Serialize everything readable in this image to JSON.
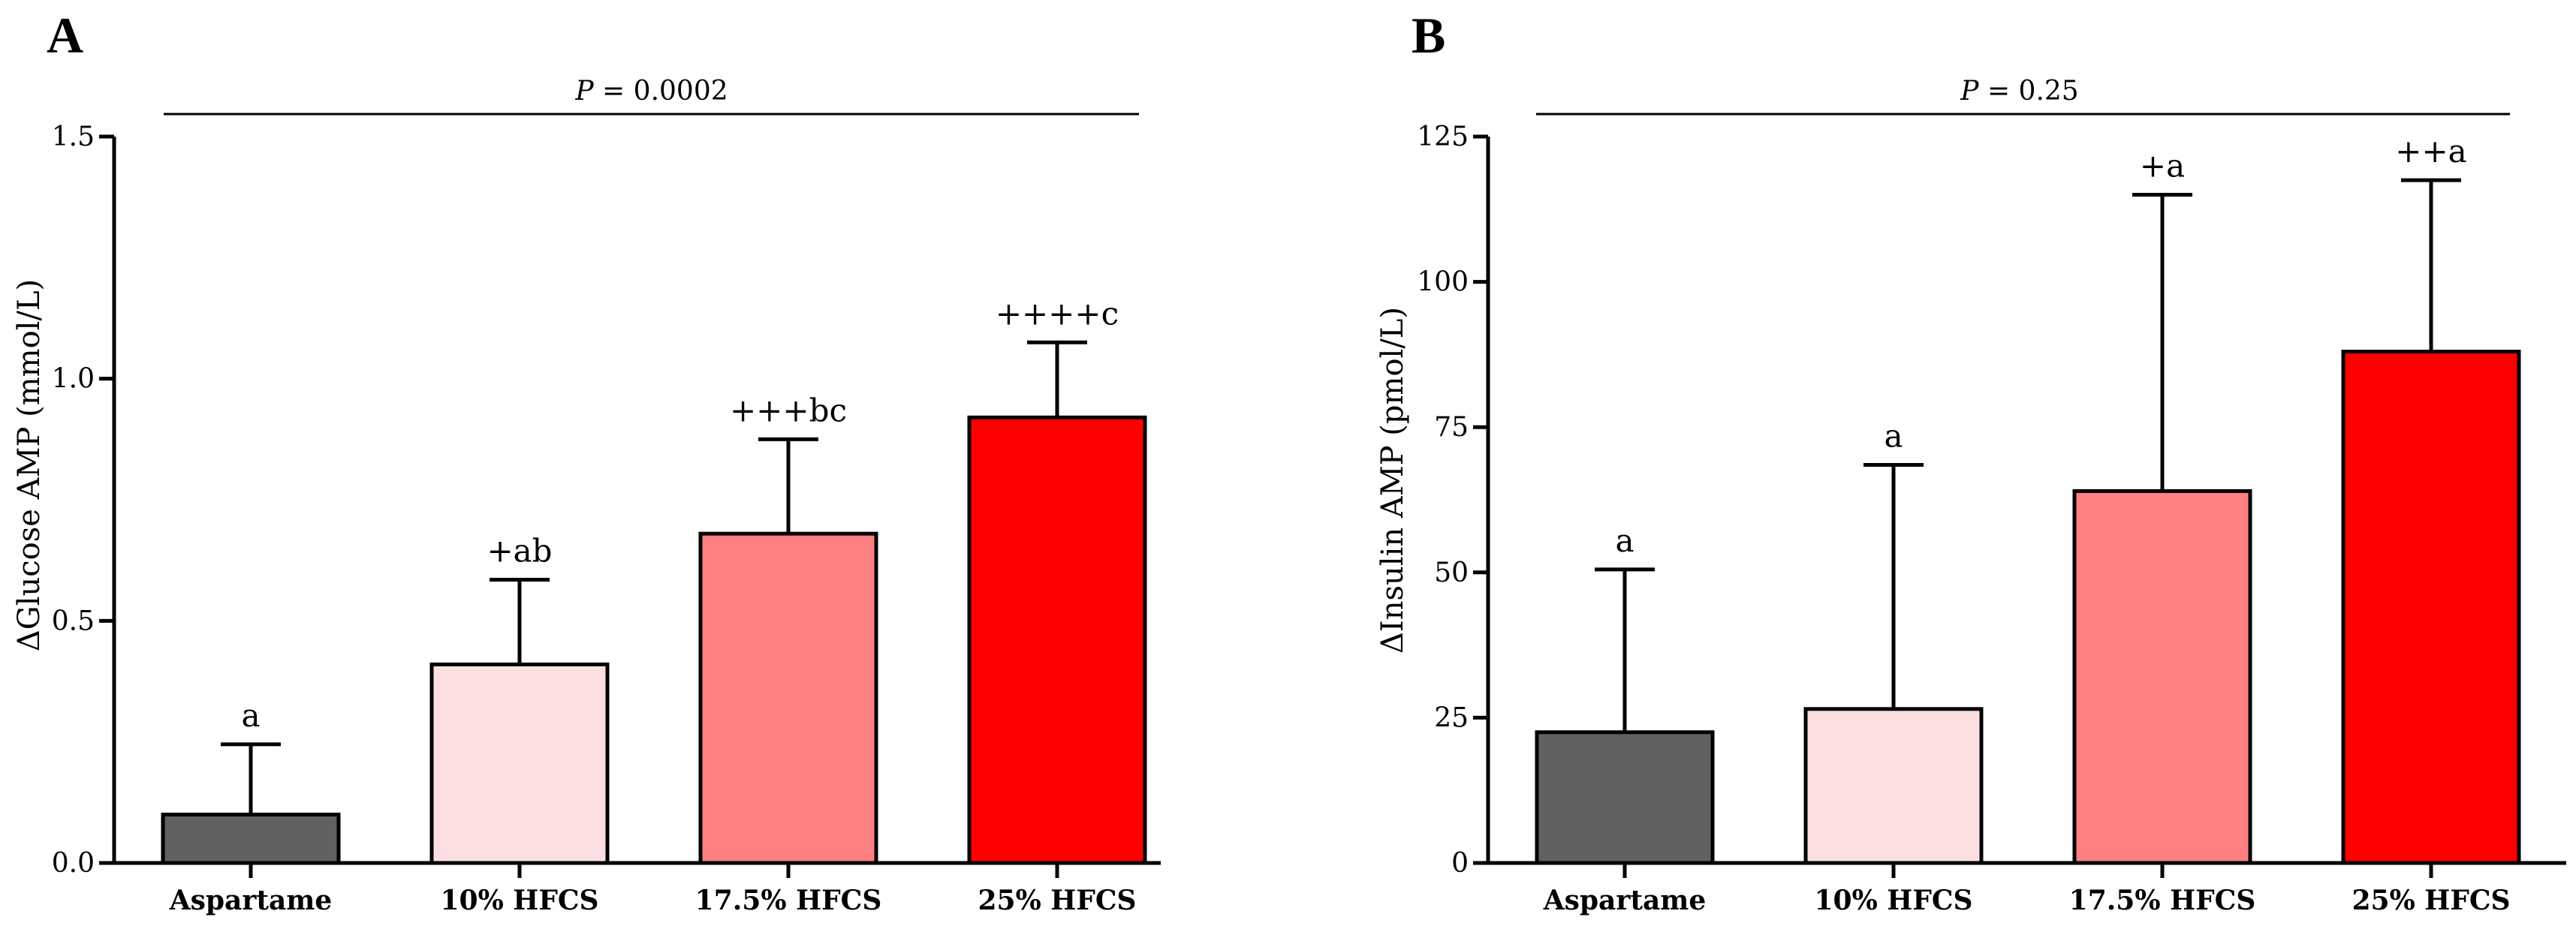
{
  "figure": {
    "panels": [
      "A",
      "B"
    ]
  },
  "chart_data": [
    {
      "panel": "A",
      "type": "bar",
      "title": "",
      "ylabel": "ΔGlucose AMP (mmol/L)",
      "xlabel": "",
      "ylim": [
        0,
        1.5
      ],
      "yticks": [
        0,
        0.5,
        1.0,
        1.5
      ],
      "yticklabels": [
        "0.0",
        "0.5",
        "1.0",
        "1.5"
      ],
      "categories": [
        "Aspartame",
        "10% HFCS",
        "17.5% HFCS",
        "25% HFCS"
      ],
      "values": [
        0.1,
        0.41,
        0.68,
        0.92
      ],
      "errors": [
        0.145,
        0.175,
        0.195,
        0.155
      ],
      "significance": [
        "a",
        "+ab",
        "+++bc",
        "++++c"
      ],
      "colors": [
        "#616161",
        "#fce0e1",
        "#ff8080",
        "#ff0000"
      ],
      "p_value": {
        "label": "P",
        "text": " = 0.0002"
      }
    },
    {
      "panel": "B",
      "type": "bar",
      "title": "",
      "ylabel": "ΔInsulin AMP (pmol/L)",
      "xlabel": "",
      "ylim": [
        0,
        125
      ],
      "yticks": [
        0,
        25,
        50,
        75,
        100,
        125
      ],
      "yticklabels": [
        "0",
        "25",
        "50",
        "75",
        "100",
        "125"
      ],
      "categories": [
        "Aspartame",
        "10% HFCS",
        "17.5% HFCS",
        "25% HFCS"
      ],
      "values": [
        22.5,
        26.5,
        64,
        88
      ],
      "errors": [
        28,
        42,
        51,
        29.5
      ],
      "significance": [
        "a",
        "a",
        "+a",
        "++a"
      ],
      "colors": [
        "#616161",
        "#fce0e1",
        "#ff8080",
        "#ff0000"
      ],
      "p_value": {
        "label": "P",
        "text": " = 0.25"
      }
    }
  ]
}
